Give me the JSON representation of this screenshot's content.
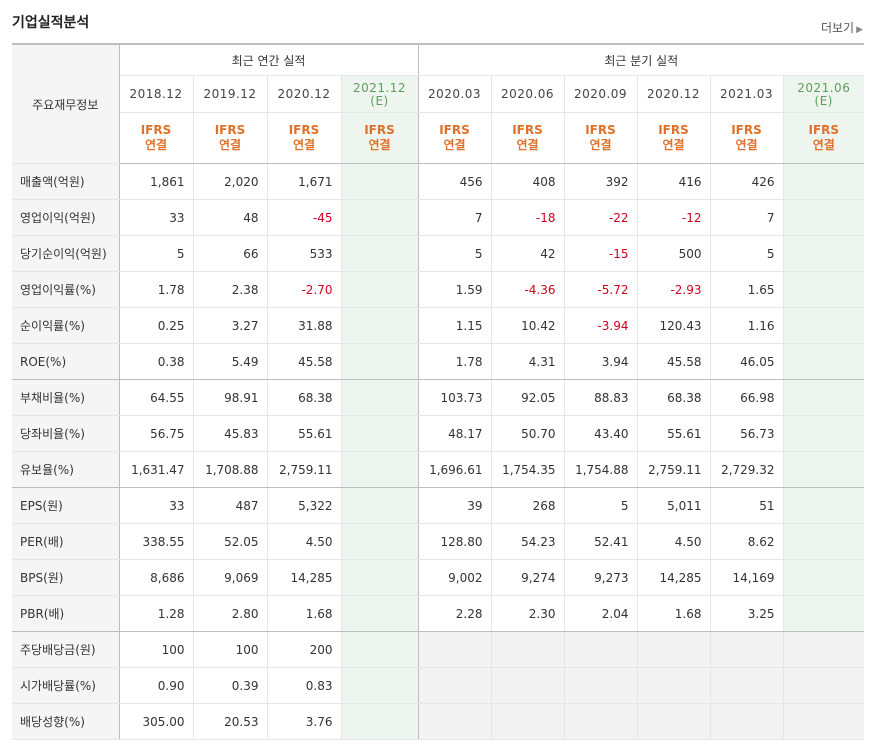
{
  "header": {
    "title": "기업실적분석",
    "more_label": "더보기"
  },
  "table": {
    "corner_label": "주요재무정보",
    "annual_group_label": "최근 연간 실적",
    "quarter_group_label": "최근 분기 실적",
    "annual_dates": [
      "2018.12",
      "2019.12",
      "2020.12",
      "2021.12"
    ],
    "quarter_dates": [
      "2020.03",
      "2020.06",
      "2020.09",
      "2020.12",
      "2021.03",
      "2021.06"
    ],
    "estimate_mark": "(E)",
    "ifrs_label": "IFRS",
    "consolidated_label": "연결",
    "rows": [
      {
        "label": "매출액(억원)",
        "a": [
          "1,861",
          "2,020",
          "1,671",
          ""
        ],
        "q": [
          "456",
          "408",
          "392",
          "416",
          "426",
          ""
        ]
      },
      {
        "label": "영업이익(억원)",
        "a": [
          "33",
          "48",
          "-45",
          ""
        ],
        "q": [
          "7",
          "-18",
          "-22",
          "-12",
          "7",
          ""
        ]
      },
      {
        "label": "당기순이익(억원)",
        "a": [
          "5",
          "66",
          "533",
          ""
        ],
        "q": [
          "5",
          "42",
          "-15",
          "500",
          "5",
          ""
        ]
      },
      {
        "label": "영업이익률(%)",
        "a": [
          "1.78",
          "2.38",
          "-2.70",
          ""
        ],
        "q": [
          "1.59",
          "-4.36",
          "-5.72",
          "-2.93",
          "1.65",
          ""
        ]
      },
      {
        "label": "순이익률(%)",
        "a": [
          "0.25",
          "3.27",
          "31.88",
          ""
        ],
        "q": [
          "1.15",
          "10.42",
          "-3.94",
          "120.43",
          "1.16",
          ""
        ]
      },
      {
        "label": "ROE(%)",
        "a": [
          "0.38",
          "5.49",
          "45.58",
          ""
        ],
        "q": [
          "1.78",
          "4.31",
          "3.94",
          "45.58",
          "46.05",
          ""
        ]
      },
      {
        "label": "부채비율(%)",
        "a": [
          "64.55",
          "98.91",
          "68.38",
          ""
        ],
        "q": [
          "103.73",
          "92.05",
          "88.83",
          "68.38",
          "66.98",
          ""
        ]
      },
      {
        "label": "당좌비율(%)",
        "a": [
          "56.75",
          "45.83",
          "55.61",
          ""
        ],
        "q": [
          "48.17",
          "50.70",
          "43.40",
          "55.61",
          "56.73",
          ""
        ]
      },
      {
        "label": "유보율(%)",
        "a": [
          "1,631.47",
          "1,708.88",
          "2,759.11",
          ""
        ],
        "q": [
          "1,696.61",
          "1,754.35",
          "1,754.88",
          "2,759.11",
          "2,729.32",
          ""
        ]
      },
      {
        "label": "EPS(원)",
        "a": [
          "33",
          "487",
          "5,322",
          ""
        ],
        "q": [
          "39",
          "268",
          "5",
          "5,011",
          "51",
          ""
        ]
      },
      {
        "label": "PER(배)",
        "a": [
          "338.55",
          "52.05",
          "4.50",
          ""
        ],
        "q": [
          "128.80",
          "54.23",
          "52.41",
          "4.50",
          "8.62",
          ""
        ]
      },
      {
        "label": "BPS(원)",
        "a": [
          "8,686",
          "9,069",
          "14,285",
          ""
        ],
        "q": [
          "9,002",
          "9,274",
          "9,273",
          "14,285",
          "14,169",
          ""
        ]
      },
      {
        "label": "PBR(배)",
        "a": [
          "1.28",
          "2.80",
          "1.68",
          ""
        ],
        "q": [
          "2.28",
          "2.30",
          "2.04",
          "1.68",
          "3.25",
          ""
        ]
      },
      {
        "label": "주당배당금(원)",
        "a": [
          "100",
          "100",
          "200",
          ""
        ],
        "q": null
      },
      {
        "label": "시가배당률(%)",
        "a": [
          "0.90",
          "0.39",
          "0.83",
          ""
        ],
        "q": null
      },
      {
        "label": "배당성향(%)",
        "a": [
          "305.00",
          "20.53",
          "3.76",
          ""
        ],
        "q": null
      }
    ],
    "group_ends": [
      5,
      8,
      12
    ],
    "colors": {
      "negative": "#d0021b",
      "ifrs": "#e0712a",
      "estimate_bg": "#eef5ee",
      "estimate_text": "#5a9e5a"
    }
  }
}
